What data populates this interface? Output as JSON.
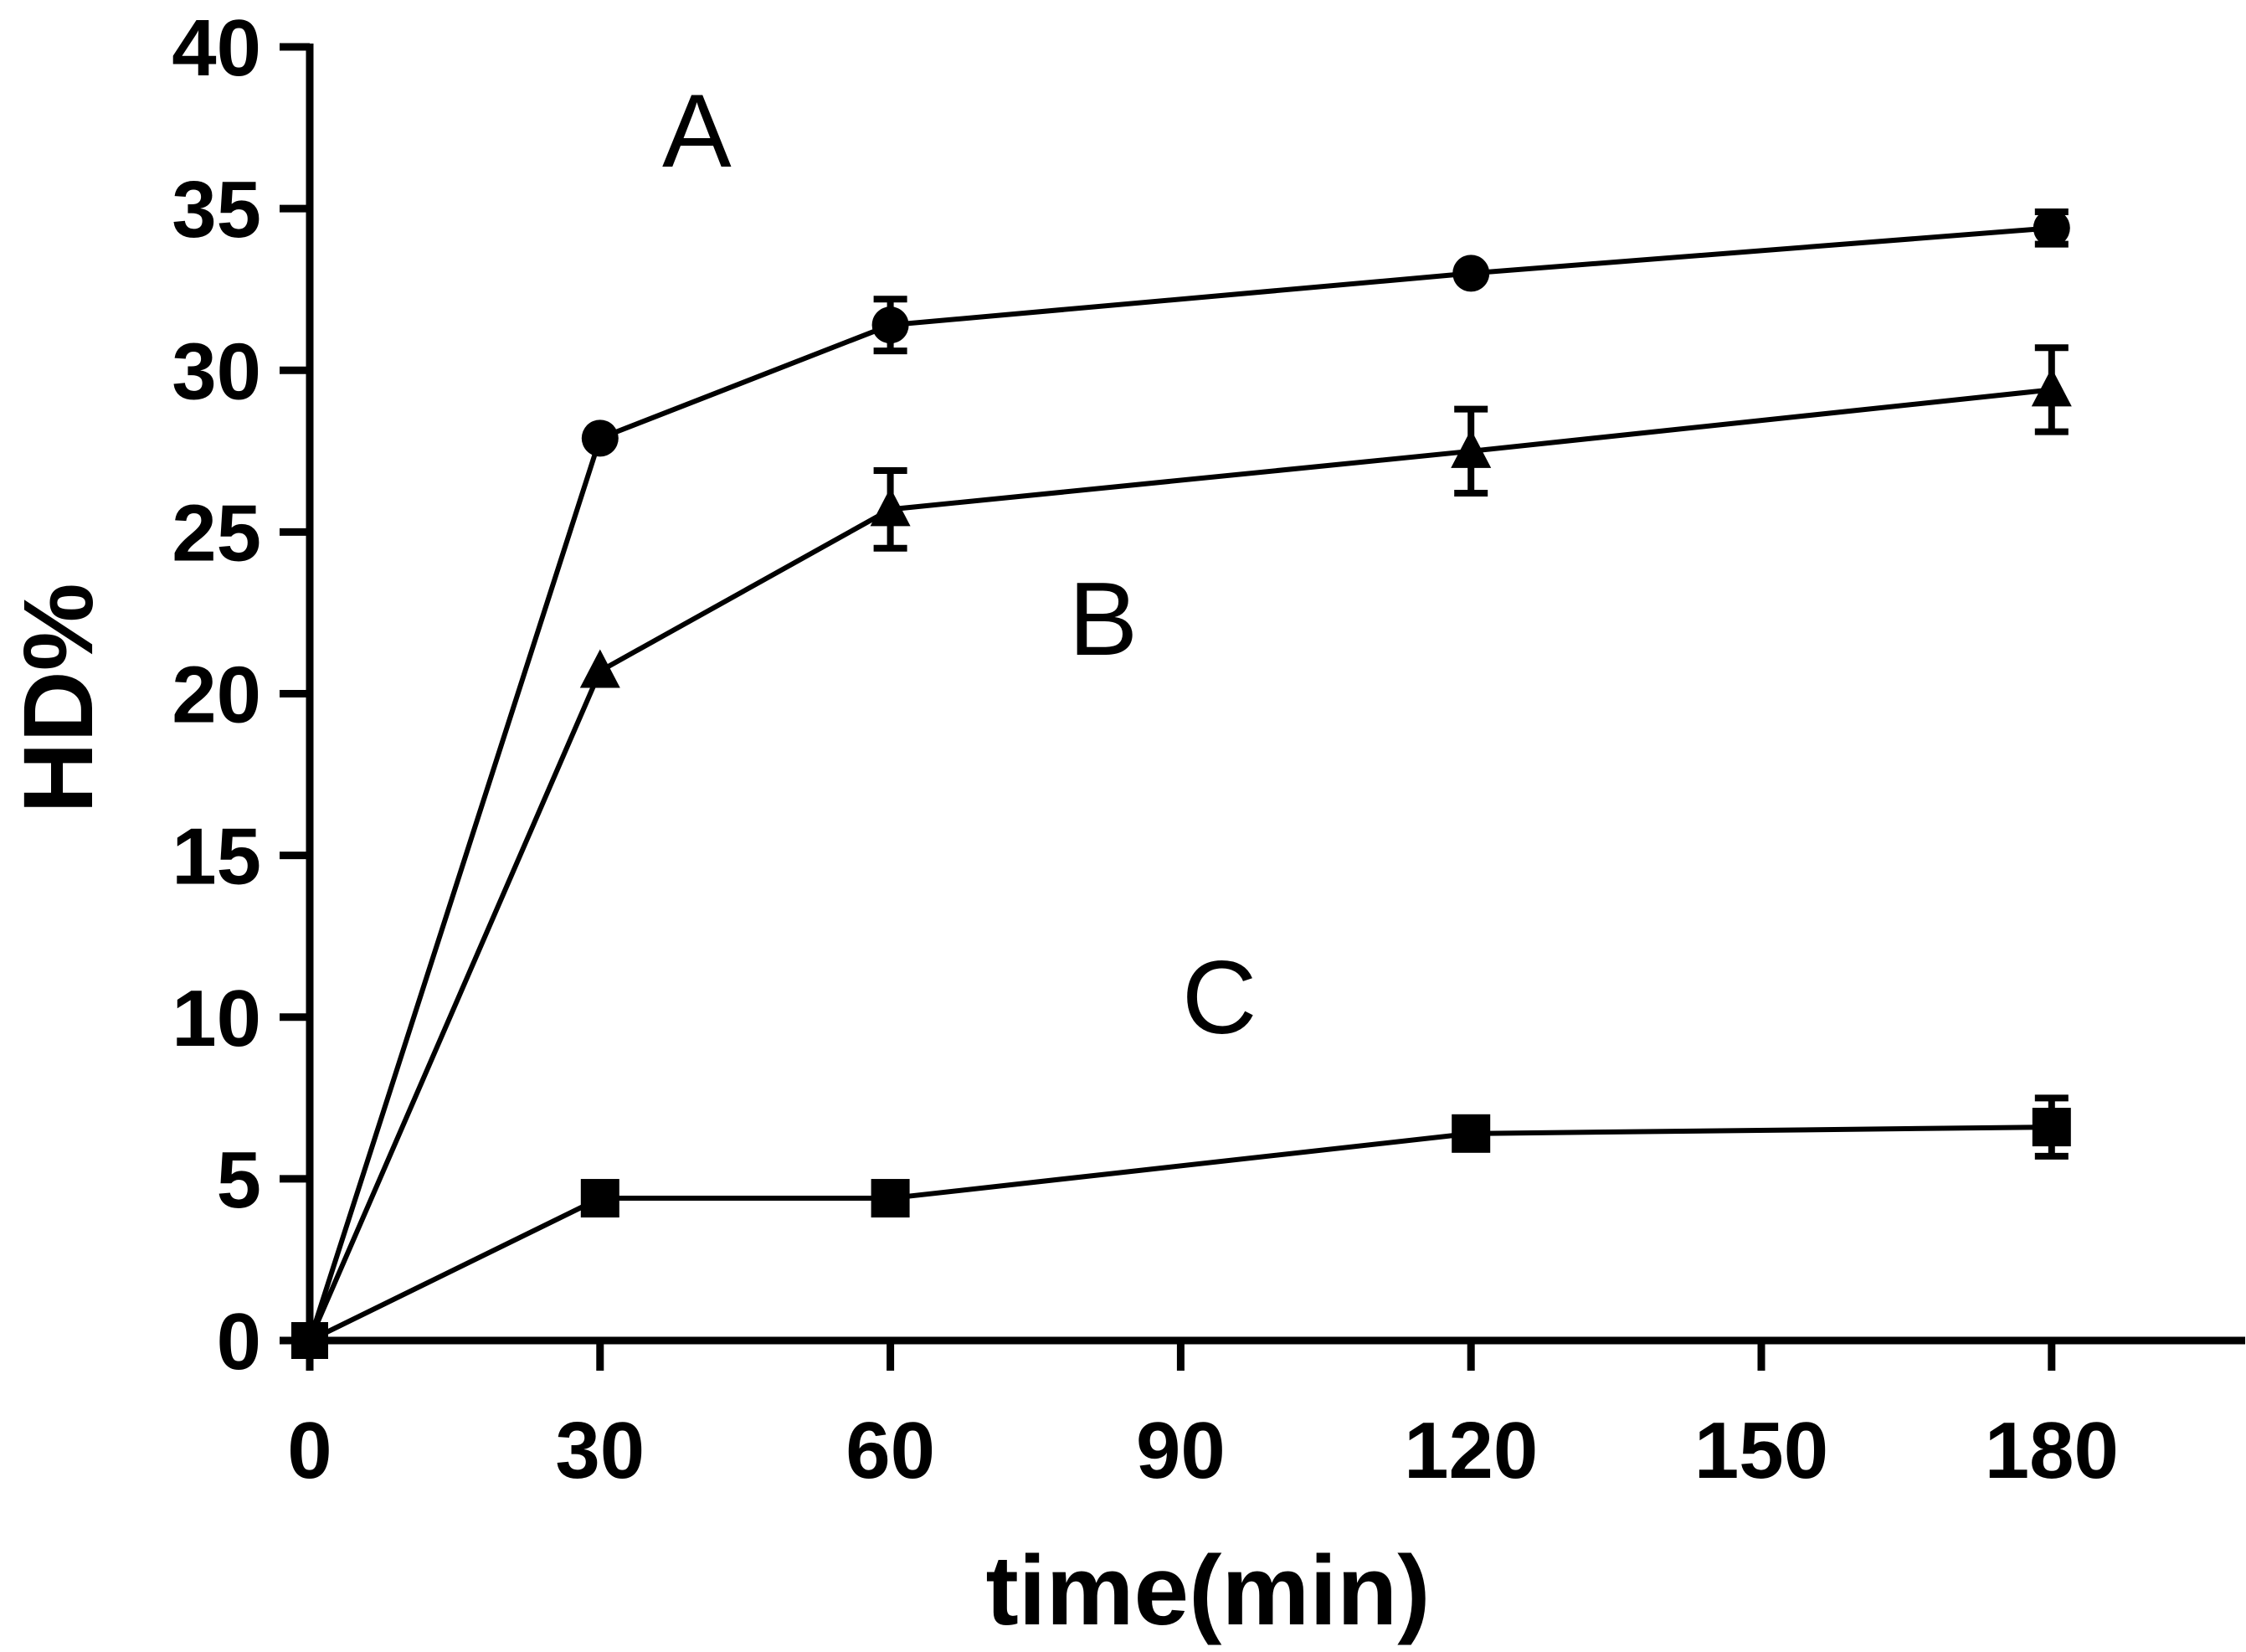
{
  "chart_data": {
    "type": "line",
    "title": "",
    "xlabel": "time(min)",
    "ylabel": "HD%",
    "xlim": [
      0,
      200
    ],
    "ylim": [
      0,
      40
    ],
    "x_ticks": [
      0,
      30,
      60,
      90,
      120,
      150,
      180
    ],
    "y_ticks": [
      0,
      5,
      10,
      15,
      20,
      25,
      30,
      35,
      40
    ],
    "grid": false,
    "legend": "none",
    "series": [
      {
        "name": "A",
        "marker": "circle",
        "x": [
          0,
          30,
          60,
          120,
          180
        ],
        "values": [
          0,
          27.9,
          31.4,
          33.0,
          34.4
        ],
        "error": [
          0,
          0,
          0.8,
          0,
          0.5
        ]
      },
      {
        "name": "B",
        "marker": "triangle",
        "x": [
          0,
          30,
          60,
          120,
          180
        ],
        "values": [
          0,
          20.7,
          25.7,
          27.5,
          29.4
        ],
        "error": [
          0,
          0,
          1.2,
          1.3,
          1.3
        ]
      },
      {
        "name": "C",
        "marker": "square",
        "x": [
          0,
          30,
          60,
          120,
          180
        ],
        "values": [
          0,
          4.4,
          4.4,
          6.4,
          6.6
        ],
        "error": [
          0,
          0,
          0,
          0,
          0.9
        ]
      }
    ],
    "annotations": [
      {
        "text": "A",
        "x": 40,
        "y": 36.3
      },
      {
        "text": "B",
        "x": 82,
        "y": 21.2
      },
      {
        "text": "C",
        "x": 94,
        "y": 9.5
      }
    ],
    "colors": {
      "line": "#000000",
      "background": "#ffffff"
    }
  }
}
